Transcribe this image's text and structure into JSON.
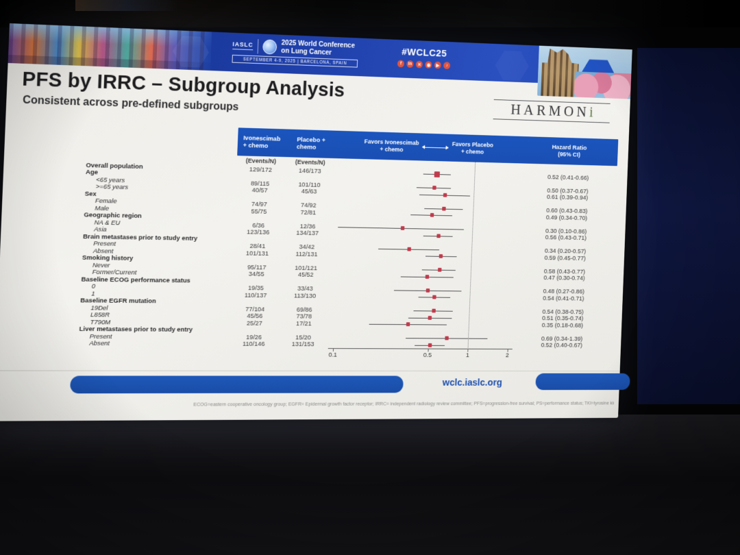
{
  "banner": {
    "iaslc_label": "IASLC",
    "title_line1": "2025 World Conference",
    "title_line2": "on Lung Cancer",
    "dates": "SEPTEMBER 4-9, 2025  |  BARCELONA, SPAIN",
    "hashtag": "#WCLC25",
    "social_icons": [
      "facebook-icon",
      "linkedin-icon",
      "x-icon",
      "instagram-icon",
      "youtube-icon",
      "music-icon"
    ]
  },
  "slide": {
    "title": "PFS by IRRC – Subgroup Analysis",
    "subtitle": "Consistent across pre-defined subgroups",
    "sponsor_logo_main": "HARMON",
    "sponsor_logo_accent": "i",
    "footer_url": "wclc.iaslc.org",
    "abbreviations": "ECOG=eastern cooperative oncology group; EGFR= Epidermal growth factor receptor; IRRC= independent radiology review committee; PFS=progression-free survival; PS=performance status; TKI=tyrosine kinase inhibitor"
  },
  "chart_data": {
    "type": "forest",
    "title": "PFS by IRRC – Subgroup Analysis",
    "column_headers": {
      "arm1_line1": "Ivonescimab",
      "arm1_line2": "+ chemo",
      "arm2_line1": "Placebo +",
      "arm2_line2": "chemo",
      "events_label": "(Events/N)",
      "favors_left_line1": "Favors Ivonescimab",
      "favors_left_line2": "+ chemo",
      "favors_right_line1": "Favors Placebo",
      "favors_right_line2": "+ chemo",
      "hr_line1": "Hazard Ratio",
      "hr_line2": "(95% CI)"
    },
    "axis": {
      "scale": "log",
      "range": [
        0.1,
        2
      ],
      "ticks": [
        0.1,
        0.5,
        1,
        2
      ],
      "ref_line": 1
    },
    "marker_color": "#c13a4c",
    "rows": [
      {
        "type": "data",
        "label": "Overall population",
        "bold": true,
        "indent": 0,
        "ivo": "129/172",
        "pbo": "146/173",
        "hr": 0.52,
        "lo": 0.41,
        "hi": 0.66,
        "hr_text": "0.52 (0.41-0.66)",
        "marker": "large"
      },
      {
        "type": "group",
        "label": "Age"
      },
      {
        "type": "data",
        "label": "<65 years",
        "indent": 1,
        "italic": true,
        "ivo": "89/115",
        "pbo": "101/110",
        "hr": 0.5,
        "lo": 0.37,
        "hi": 0.67,
        "hr_text": "0.50 (0.37-0.67)"
      },
      {
        "type": "data",
        "label": ">=65 years",
        "indent": 1,
        "italic": true,
        "ivo": "40/57",
        "pbo": "45/63",
        "hr": 0.61,
        "lo": 0.39,
        "hi": 0.94,
        "hr_text": "0.61 (0.39-0.94)"
      },
      {
        "type": "group",
        "label": "Sex"
      },
      {
        "type": "data",
        "label": "Female",
        "indent": 1,
        "italic": true,
        "ivo": "74/97",
        "pbo": "74/92",
        "hr": 0.6,
        "lo": 0.43,
        "hi": 0.83,
        "hr_text": "0.60 (0.43-0.83)"
      },
      {
        "type": "data",
        "label": "Male",
        "indent": 1,
        "italic": true,
        "ivo": "55/75",
        "pbo": "72/81",
        "hr": 0.49,
        "lo": 0.34,
        "hi": 0.7,
        "hr_text": "0.49 (0.34-0.70)"
      },
      {
        "type": "group",
        "label": "Geographic region"
      },
      {
        "type": "data",
        "label": "NA & EU",
        "indent": 1,
        "italic": true,
        "ivo": "6/36",
        "pbo": "12/36",
        "hr": 0.3,
        "lo": 0.1,
        "hi": 0.86,
        "hr_text": "0.30 (0.10-0.86)"
      },
      {
        "type": "data",
        "label": "Asia",
        "indent": 1,
        "italic": true,
        "ivo": "123/136",
        "pbo": "134/137",
        "hr": 0.56,
        "lo": 0.43,
        "hi": 0.71,
        "hr_text": "0.56 (0.43-0.71)"
      },
      {
        "type": "group",
        "label": "Brain metastases prior to study entry"
      },
      {
        "type": "data",
        "label": "Present",
        "indent": 1,
        "italic": true,
        "ivo": "28/41",
        "pbo": "34/42",
        "hr": 0.34,
        "lo": 0.2,
        "hi": 0.57,
        "hr_text": "0.34 (0.20-0.57)"
      },
      {
        "type": "data",
        "label": "Absent",
        "indent": 1,
        "italic": true,
        "ivo": "101/131",
        "pbo": "112/131",
        "hr": 0.59,
        "lo": 0.45,
        "hi": 0.77,
        "hr_text": "0.59 (0.45-0.77)"
      },
      {
        "type": "group",
        "label": "Smoking history"
      },
      {
        "type": "data",
        "label": "Never",
        "indent": 1,
        "italic": true,
        "ivo": "95/117",
        "pbo": "101/121",
        "hr": 0.58,
        "lo": 0.43,
        "hi": 0.77,
        "hr_text": "0.58 (0.43-0.77)"
      },
      {
        "type": "data",
        "label": "Former/Current",
        "indent": 1,
        "italic": true,
        "ivo": "34/55",
        "pbo": "45/52",
        "hr": 0.47,
        "lo": 0.3,
        "hi": 0.74,
        "hr_text": "0.47 (0.30-0.74)"
      },
      {
        "type": "group",
        "label": "Baseline ECOG performance status"
      },
      {
        "type": "data",
        "label": "0",
        "indent": 1,
        "italic": true,
        "ivo": "19/35",
        "pbo": "33/43",
        "hr": 0.48,
        "lo": 0.27,
        "hi": 0.86,
        "hr_text": "0.48 (0.27-0.86)"
      },
      {
        "type": "data",
        "label": "1",
        "indent": 1,
        "italic": true,
        "ivo": "110/137",
        "pbo": "113/130",
        "hr": 0.54,
        "lo": 0.41,
        "hi": 0.71,
        "hr_text": "0.54 (0.41-0.71)"
      },
      {
        "type": "group",
        "label": "Baseline EGFR mutation"
      },
      {
        "type": "data",
        "label": "19Del",
        "indent": 1,
        "italic": true,
        "ivo": "77/104",
        "pbo": "69/86",
        "hr": 0.54,
        "lo": 0.38,
        "hi": 0.75,
        "hr_text": "0.54 (0.38-0.75)"
      },
      {
        "type": "data",
        "label": "L858R",
        "indent": 1,
        "italic": true,
        "ivo": "45/56",
        "pbo": "73/78",
        "hr": 0.51,
        "lo": 0.35,
        "hi": 0.74,
        "hr_text": "0.51 (0.35-0.74)"
      },
      {
        "type": "data",
        "label": "T790M",
        "indent": 1,
        "italic": true,
        "ivo": "25/27",
        "pbo": "17/21",
        "hr": 0.35,
        "lo": 0.18,
        "hi": 0.68,
        "hr_text": "0.35 (0.18-0.68)"
      },
      {
        "type": "group",
        "label": "Liver metastases prior to study entry"
      },
      {
        "type": "data",
        "label": "Present",
        "indent": 1,
        "italic": true,
        "ivo": "19/26",
        "pbo": "15/20",
        "hr": 0.69,
        "lo": 0.34,
        "hi": 1.39,
        "hr_text": "0.69 (0.34-1.39)"
      },
      {
        "type": "data",
        "label": "Absent",
        "indent": 1,
        "italic": true,
        "ivo": "110/146",
        "pbo": "131/153",
        "hr": 0.52,
        "lo": 0.4,
        "hi": 0.67,
        "hr_text": "0.52 (0.40-0.67)"
      }
    ]
  }
}
